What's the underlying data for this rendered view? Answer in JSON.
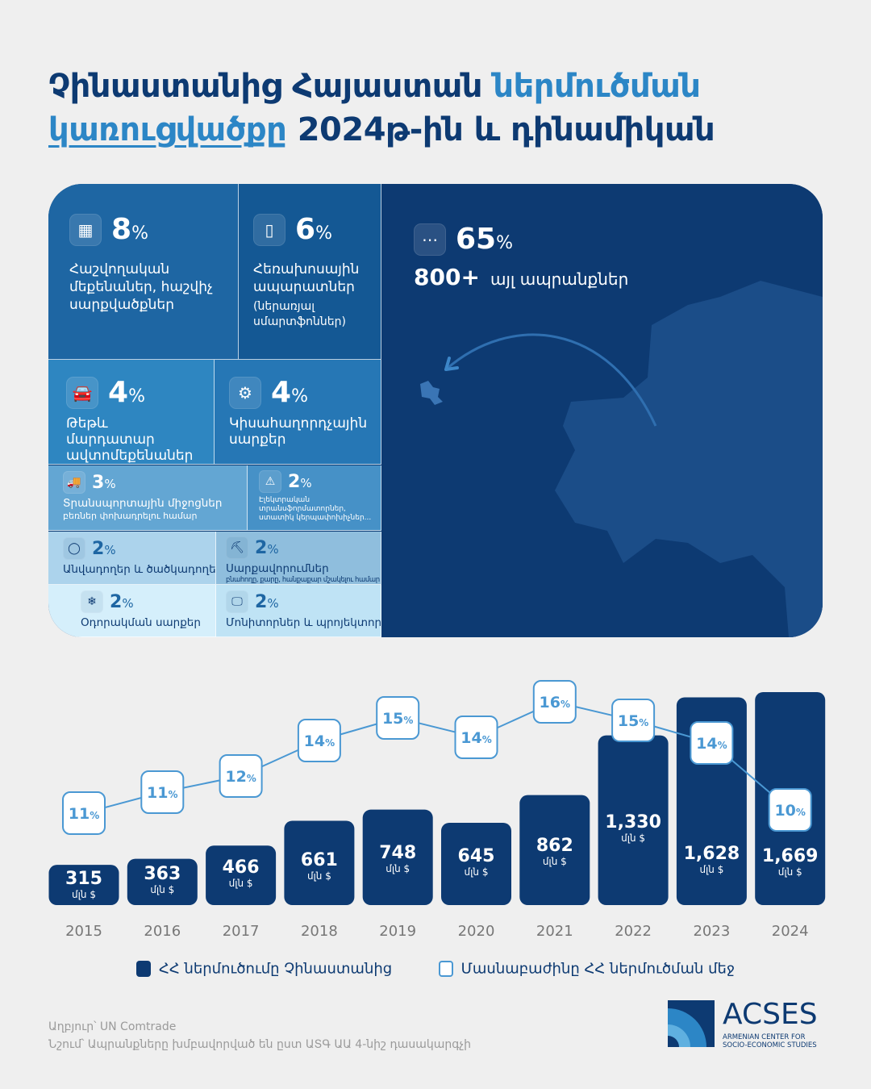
{
  "title": {
    "part1": "Չինաստանից Հայաստան ",
    "part2": "ներմուծման",
    "part3": "կառուցվածքը",
    "part4": " 2024թ-ին և դինամիկան"
  },
  "treemap": {
    "tiles": [
      {
        "icon": "calculator-icon",
        "pct": "8",
        "label": "Հաշվողական մեքենաներ, հաշվիչ սարքվածքներ",
        "sub": ""
      },
      {
        "icon": "phone-icon",
        "pct": "6",
        "label": "Հեռախոսային ապարատներ",
        "sub": "(ներառյալ սմարտֆոններ)"
      },
      {
        "icon": "car-icon",
        "pct": "4",
        "label": "Թեթև մարդատար ավտոմեքենաներ",
        "sub": ""
      },
      {
        "icon": "chip-icon",
        "pct": "4",
        "label": "Կիսահաղորդչային սարքեր",
        "sub": ""
      },
      {
        "icon": "truck-icon",
        "pct": "3",
        "label": "Տրանսպորտային միջոցներ",
        "sub": "բեռներ փոխադրելու համար"
      },
      {
        "icon": "electric-warning-icon",
        "pct": "2",
        "label": "",
        "sub": "Էլեկտրական տրանսֆորմատորներ, ստատիկ կերպափոխիչներ..."
      },
      {
        "icon": "tire-icon",
        "pct": "2",
        "label": "Անվադողեր և ծածկադողեր",
        "sub": ""
      },
      {
        "icon": "excavator-icon",
        "pct": "2",
        "label": "Սարքավորումներ",
        "sub": "բնահողը, քարը, հանքաքար մշակելու համար"
      },
      {
        "icon": "air-conditioner-icon",
        "pct": "2",
        "label": "Օդորակման սարքեր",
        "sub": ""
      },
      {
        "icon": "monitor-icon",
        "pct": "2",
        "label": "Մոնիտորներ և պրոյեկտորներ",
        "sub": ""
      }
    ],
    "other": {
      "icon": "more-icon",
      "pct": "65",
      "count": "800+",
      "label": "այլ ապրանքներ"
    },
    "pct_sign": "%"
  },
  "chart_data": {
    "type": "bar",
    "categories": [
      "2015",
      "2016",
      "2017",
      "2018",
      "2019",
      "2020",
      "2021",
      "2022",
      "2023",
      "2024"
    ],
    "series": [
      {
        "name": "ՀՀ ներմուծումը Չինաստանից",
        "unit": "մլն $",
        "values": [
          315,
          363,
          466,
          661,
          748,
          645,
          862,
          1330,
          1628,
          1669
        ],
        "labels": [
          "315",
          "363",
          "466",
          "661",
          "748",
          "645",
          "862",
          "1,330",
          "1,628",
          "1,669"
        ]
      },
      {
        "name": "Մասնաբաժինը ՀՀ ներմուծման մեջ",
        "type": "line",
        "unit": "%",
        "values": [
          11,
          11,
          12,
          14,
          15,
          14,
          16,
          15,
          14,
          10
        ]
      }
    ],
    "colors": {
      "bar": "#0d3a72",
      "line": "#4a98d3"
    }
  },
  "legend": {
    "bars": "ՀՀ ներմուծումը Չինաստանից",
    "line": "Մասնաբաժինը ՀՀ ներմուծման մեջ"
  },
  "footer": {
    "source": "Աղբյուր՝ UN Comtrade",
    "note": "Նշում՝ Ապրանքները խմբավորված են ըստ ԱՏԳ ԱԱ 4-նիշ դասակարգչի"
  },
  "logo": {
    "name": "ACSES",
    "line1": "ARMENIAN CENTER FOR",
    "line2": "SOCIO-ECONOMIC STUDIES"
  }
}
